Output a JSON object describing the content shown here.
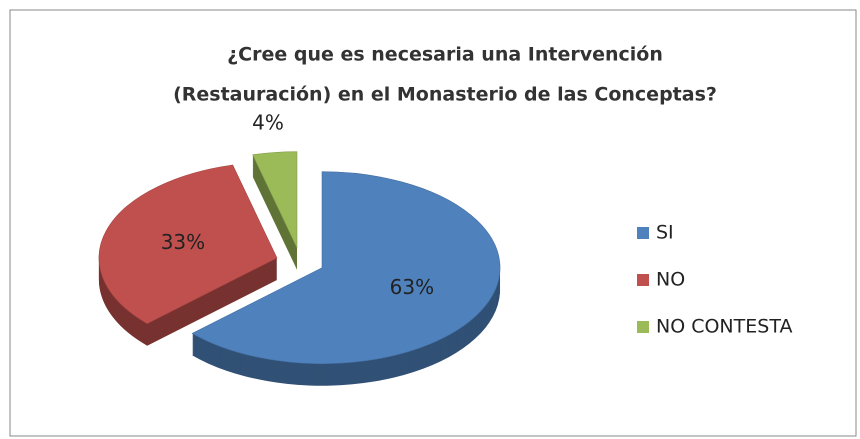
{
  "chart_data": {
    "type": "pie",
    "title": [
      "¿Cree que es necesaria una Intervención",
      "(Restauración) en el Monasterio de las Conceptas?"
    ],
    "categories": [
      "SI",
      "NO",
      "NO CONTESTA"
    ],
    "values": [
      63,
      33,
      4
    ],
    "value_labels": [
      "63%",
      "33%",
      "4%"
    ],
    "colors": [
      "#4f81bd",
      "#c0504d",
      "#9bbb59"
    ],
    "legend": "right"
  }
}
